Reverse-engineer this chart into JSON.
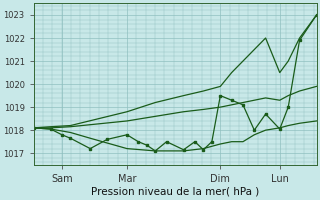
{
  "background_color": "#c8e8e8",
  "plot_bg_color": "#c8e8e8",
  "grid_color": "#90c0c0",
  "line_color": "#1a5c1a",
  "xlabel": "Pression niveau de la mer( hPa )",
  "ylim": [
    1016.5,
    1023.5
  ],
  "yticks": [
    1017,
    1018,
    1019,
    1020,
    1021,
    1022,
    1023
  ],
  "xtick_labels": [
    "Sam",
    "Mar",
    "Dim",
    "Lun"
  ],
  "xtick_positions": [
    0.1,
    0.33,
    0.66,
    0.87
  ],
  "xlim": [
    0,
    1
  ],
  "series1_x": [
    0.0,
    0.06,
    0.13,
    0.33,
    0.43,
    0.53,
    0.6,
    0.66,
    0.7,
    0.74,
    0.78,
    0.82,
    0.87,
    0.9,
    0.94,
    1.0
  ],
  "series1_y": [
    1018.1,
    1018.15,
    1018.2,
    1018.8,
    1019.2,
    1019.5,
    1019.7,
    1019.9,
    1020.5,
    1021.0,
    1021.5,
    1022.0,
    1020.5,
    1021.0,
    1022.0,
    1023.0
  ],
  "series2_x": [
    0.0,
    0.06,
    0.13,
    0.33,
    0.43,
    0.53,
    0.6,
    0.66,
    0.7,
    0.74,
    0.78,
    0.82,
    0.87,
    0.9,
    0.94,
    1.0
  ],
  "series2_y": [
    1018.1,
    1018.1,
    1018.15,
    1018.4,
    1018.6,
    1018.8,
    1018.9,
    1019.0,
    1019.1,
    1019.2,
    1019.3,
    1019.4,
    1019.3,
    1019.5,
    1019.7,
    1019.9
  ],
  "series3_x": [
    0.0,
    0.06,
    0.13,
    0.2,
    0.33,
    0.43,
    0.53,
    0.6,
    0.66,
    0.7,
    0.74,
    0.78,
    0.82,
    0.87,
    0.9,
    0.94,
    1.0
  ],
  "series3_y": [
    1018.1,
    1018.05,
    1017.9,
    1017.65,
    1017.2,
    1017.1,
    1017.1,
    1017.2,
    1017.4,
    1017.5,
    1017.5,
    1017.8,
    1018.0,
    1018.1,
    1018.2,
    1018.3,
    1018.4
  ],
  "series4_x": [
    0.0,
    0.06,
    0.1,
    0.13,
    0.2,
    0.26,
    0.33,
    0.37,
    0.4,
    0.43,
    0.47,
    0.53,
    0.57,
    0.6,
    0.63,
    0.66,
    0.7,
    0.74,
    0.78,
    0.82,
    0.87,
    0.9,
    0.94,
    1.0
  ],
  "series4_y": [
    1018.1,
    1018.05,
    1017.8,
    1017.65,
    1017.2,
    1017.6,
    1017.8,
    1017.5,
    1017.35,
    1017.1,
    1017.5,
    1017.15,
    1017.5,
    1017.15,
    1017.5,
    1019.5,
    1019.3,
    1019.1,
    1018.0,
    1018.7,
    1018.05,
    1019.0,
    1021.9,
    1023.0
  ],
  "num_points": 21
}
